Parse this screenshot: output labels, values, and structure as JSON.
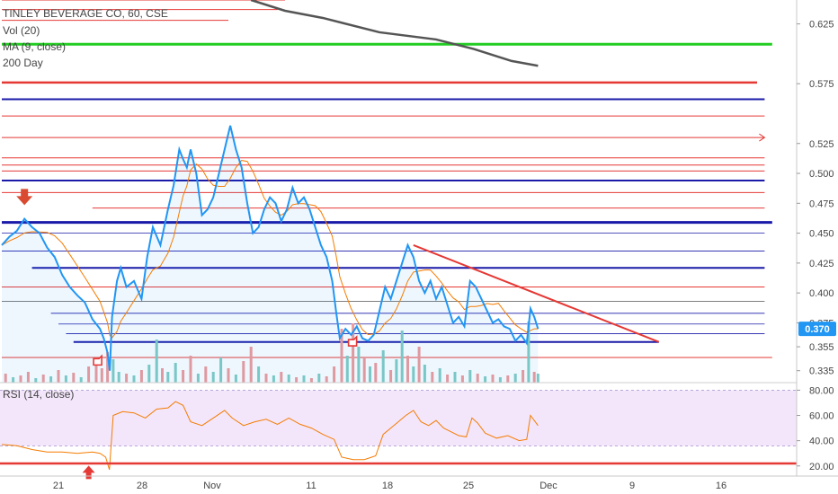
{
  "chart_data": {
    "type": "line",
    "legend": {
      "main": "TINLEY BEVERAGE CO, 60, CSE",
      "vol": "Vol (20)",
      "ma": "MA (9, close)",
      "day200": "200 Day",
      "rsi": "RSI (14, close)"
    },
    "price_axis_ticks": [
      0.625,
      0.575,
      0.525,
      0.5,
      0.475,
      0.45,
      0.425,
      0.4,
      0.375,
      0.355,
      0.335
    ],
    "price_ylim": [
      0.325,
      0.645
    ],
    "last_price": 0.37,
    "last_price_label": "0.370",
    "rsi_axis_ticks": [
      80,
      60,
      40,
      20
    ],
    "rsi_ylim": [
      12,
      86
    ],
    "rsi_band": [
      30,
      70
    ],
    "date_ticks": [
      "21",
      "28",
      "Nov",
      "11",
      "18",
      "25",
      "Dec",
      "9",
      "16"
    ],
    "colors": {
      "price": "#2196f3",
      "ma": "#f57c00",
      "rsi": "#f57c00",
      "day200": "#555555",
      "level_thin": "#e53935",
      "level_blue": "#1a1aa8",
      "green": "#22cc22",
      "vol_up": "#80cbc4",
      "vol_down": "#ef9a9a",
      "last_price_tag": "#2196f3",
      "marker": "#d94a30"
    },
    "price_series": [
      {
        "t": 0,
        "v": 0.44
      },
      {
        "t": 2,
        "v": 0.447
      },
      {
        "t": 4,
        "v": 0.452
      },
      {
        "t": 6,
        "v": 0.462
      },
      {
        "t": 8,
        "v": 0.455
      },
      {
        "t": 10,
        "v": 0.45
      },
      {
        "t": 12,
        "v": 0.438
      },
      {
        "t": 14,
        "v": 0.43
      },
      {
        "t": 16,
        "v": 0.415
      },
      {
        "t": 18,
        "v": 0.405
      },
      {
        "t": 20,
        "v": 0.398
      },
      {
        "t": 22,
        "v": 0.392
      },
      {
        "t": 24,
        "v": 0.378
      },
      {
        "t": 26,
        "v": 0.37
      },
      {
        "t": 27,
        "v": 0.362
      },
      {
        "t": 28,
        "v": 0.35
      },
      {
        "t": 28.6,
        "v": 0.335
      },
      {
        "t": 29.2,
        "v": 0.38
      },
      {
        "t": 30.5,
        "v": 0.41
      },
      {
        "t": 31.5,
        "v": 0.421
      },
      {
        "t": 33,
        "v": 0.405
      },
      {
        "t": 35,
        "v": 0.41
      },
      {
        "t": 37,
        "v": 0.395
      },
      {
        "t": 38.5,
        "v": 0.43
      },
      {
        "t": 40,
        "v": 0.455
      },
      {
        "t": 42,
        "v": 0.44
      },
      {
        "t": 44,
        "v": 0.47
      },
      {
        "t": 45.5,
        "v": 0.49
      },
      {
        "t": 47,
        "v": 0.52
      },
      {
        "t": 48,
        "v": 0.512
      },
      {
        "t": 49,
        "v": 0.505
      },
      {
        "t": 50,
        "v": 0.52
      },
      {
        "t": 51.5,
        "v": 0.5
      },
      {
        "t": 53,
        "v": 0.465
      },
      {
        "t": 54.5,
        "v": 0.47
      },
      {
        "t": 56,
        "v": 0.48
      },
      {
        "t": 57.5,
        "v": 0.5
      },
      {
        "t": 59,
        "v": 0.52
      },
      {
        "t": 60.5,
        "v": 0.54
      },
      {
        "t": 62,
        "v": 0.52
      },
      {
        "t": 63.5,
        "v": 0.505
      },
      {
        "t": 65,
        "v": 0.475
      },
      {
        "t": 66.5,
        "v": 0.45
      },
      {
        "t": 68,
        "v": 0.455
      },
      {
        "t": 69.5,
        "v": 0.47
      },
      {
        "t": 71,
        "v": 0.48
      },
      {
        "t": 72.5,
        "v": 0.475
      },
      {
        "t": 74,
        "v": 0.46
      },
      {
        "t": 75.5,
        "v": 0.47
      },
      {
        "t": 77,
        "v": 0.488
      },
      {
        "t": 78.5,
        "v": 0.475
      },
      {
        "t": 80,
        "v": 0.48
      },
      {
        "t": 81.5,
        "v": 0.47
      },
      {
        "t": 83,
        "v": 0.455
      },
      {
        "t": 84.5,
        "v": 0.44
      },
      {
        "t": 86,
        "v": 0.43
      },
      {
        "t": 87.5,
        "v": 0.41
      },
      {
        "t": 88.5,
        "v": 0.385
      },
      {
        "t": 89.5,
        "v": 0.362
      },
      {
        "t": 91,
        "v": 0.37
      },
      {
        "t": 92.5,
        "v": 0.365
      },
      {
        "t": 94,
        "v": 0.372
      },
      {
        "t": 95.5,
        "v": 0.362
      },
      {
        "t": 97,
        "v": 0.36
      },
      {
        "t": 98.5,
        "v": 0.365
      },
      {
        "t": 100,
        "v": 0.385
      },
      {
        "t": 101.5,
        "v": 0.405
      },
      {
        "t": 103,
        "v": 0.395
      },
      {
        "t": 104.5,
        "v": 0.41
      },
      {
        "t": 106,
        "v": 0.425
      },
      {
        "t": 107.5,
        "v": 0.44
      },
      {
        "t": 109,
        "v": 0.43
      },
      {
        "t": 110.5,
        "v": 0.41
      },
      {
        "t": 112,
        "v": 0.4
      },
      {
        "t": 113.5,
        "v": 0.41
      },
      {
        "t": 115,
        "v": 0.395
      },
      {
        "t": 116.5,
        "v": 0.405
      },
      {
        "t": 118,
        "v": 0.39
      },
      {
        "t": 119.5,
        "v": 0.375
      },
      {
        "t": 121,
        "v": 0.38
      },
      {
        "t": 122.5,
        "v": 0.372
      },
      {
        "t": 124,
        "v": 0.41
      },
      {
        "t": 125.5,
        "v": 0.405
      },
      {
        "t": 127,
        "v": 0.395
      },
      {
        "t": 128.5,
        "v": 0.385
      },
      {
        "t": 130,
        "v": 0.375
      },
      {
        "t": 131.5,
        "v": 0.378
      },
      {
        "t": 133,
        "v": 0.372
      },
      {
        "t": 134.5,
        "v": 0.37
      },
      {
        "t": 136,
        "v": 0.36
      },
      {
        "t": 137.5,
        "v": 0.365
      },
      {
        "t": 139,
        "v": 0.358
      },
      {
        "t": 140,
        "v": 0.387
      },
      {
        "t": 141,
        "v": 0.38
      },
      {
        "t": 142,
        "v": 0.37
      }
    ],
    "rsi_series": [
      {
        "t": 0,
        "v": 37
      },
      {
        "t": 4,
        "v": 36
      },
      {
        "t": 8,
        "v": 33
      },
      {
        "t": 12,
        "v": 31
      },
      {
        "t": 16,
        "v": 31
      },
      {
        "t": 20,
        "v": 30
      },
      {
        "t": 24,
        "v": 31
      },
      {
        "t": 26,
        "v": 30
      },
      {
        "t": 27.5,
        "v": 27
      },
      {
        "t": 28.5,
        "v": 17
      },
      {
        "t": 29.5,
        "v": 60
      },
      {
        "t": 32,
        "v": 63
      },
      {
        "t": 35,
        "v": 62
      },
      {
        "t": 38,
        "v": 58
      },
      {
        "t": 41,
        "v": 65
      },
      {
        "t": 44,
        "v": 66
      },
      {
        "t": 46,
        "v": 71
      },
      {
        "t": 48,
        "v": 68
      },
      {
        "t": 50,
        "v": 55
      },
      {
        "t": 53,
        "v": 52
      },
      {
        "t": 56,
        "v": 58
      },
      {
        "t": 59,
        "v": 64
      },
      {
        "t": 61,
        "v": 58
      },
      {
        "t": 64,
        "v": 52
      },
      {
        "t": 67,
        "v": 55
      },
      {
        "t": 70,
        "v": 57
      },
      {
        "t": 73,
        "v": 53
      },
      {
        "t": 76,
        "v": 58
      },
      {
        "t": 79,
        "v": 53
      },
      {
        "t": 82,
        "v": 50
      },
      {
        "t": 85,
        "v": 45
      },
      {
        "t": 88,
        "v": 41
      },
      {
        "t": 90,
        "v": 27
      },
      {
        "t": 93,
        "v": 25
      },
      {
        "t": 96,
        "v": 25
      },
      {
        "t": 99,
        "v": 28
      },
      {
        "t": 101,
        "v": 45
      },
      {
        "t": 103,
        "v": 50
      },
      {
        "t": 105,
        "v": 55
      },
      {
        "t": 107,
        "v": 60
      },
      {
        "t": 109,
        "v": 64
      },
      {
        "t": 111,
        "v": 55
      },
      {
        "t": 113,
        "v": 52
      },
      {
        "t": 115,
        "v": 56
      },
      {
        "t": 117,
        "v": 50
      },
      {
        "t": 119,
        "v": 47
      },
      {
        "t": 121,
        "v": 44
      },
      {
        "t": 123,
        "v": 43
      },
      {
        "t": 124.5,
        "v": 58
      },
      {
        "t": 126,
        "v": 54
      },
      {
        "t": 128,
        "v": 46
      },
      {
        "t": 131,
        "v": 42
      },
      {
        "t": 134,
        "v": 44
      },
      {
        "t": 137,
        "v": 40
      },
      {
        "t": 139,
        "v": 41
      },
      {
        "t": 140,
        "v": 60
      },
      {
        "t": 142,
        "v": 52
      }
    ],
    "day200_series": [
      {
        "t": 66,
        "v": 0.645
      },
      {
        "t": 75,
        "v": 0.636
      },
      {
        "t": 85,
        "v": 0.63
      },
      {
        "t": 100,
        "v": 0.618
      },
      {
        "t": 115,
        "v": 0.612
      },
      {
        "t": 125,
        "v": 0.604
      },
      {
        "t": 135,
        "v": 0.594
      },
      {
        "t": 142,
        "v": 0.59
      }
    ],
    "horizontal_levels": [
      {
        "v": 0.645,
        "kind": "thin",
        "t1": 0,
        "t2": 75
      },
      {
        "v": 0.637,
        "kind": "thin",
        "t1": 0,
        "t2": 73
      },
      {
        "v": 0.628,
        "kind": "thin",
        "t1": 0,
        "t2": 60
      },
      {
        "v": 0.608,
        "kind": "green",
        "t1": 0,
        "t2": 204
      },
      {
        "v": 0.576,
        "kind": "red_thick",
        "t1": 0,
        "t2": 200
      },
      {
        "v": 0.562,
        "kind": "blue",
        "t1": 0,
        "t2": 202
      },
      {
        "v": 0.548,
        "kind": "thin",
        "t1": 0,
        "t2": 202
      },
      {
        "v": 0.53,
        "kind": "thin_arrow",
        "t1": 0,
        "t2": 202
      },
      {
        "v": 0.513,
        "kind": "thin",
        "t1": 0,
        "t2": 202
      },
      {
        "v": 0.507,
        "kind": "thin",
        "t1": 0,
        "t2": 202
      },
      {
        "v": 0.502,
        "kind": "thin",
        "t1": 0,
        "t2": 202
      },
      {
        "v": 0.494,
        "kind": "blue",
        "t1": 0,
        "t2": 202
      },
      {
        "v": 0.484,
        "kind": "thin",
        "t1": 0,
        "t2": 202
      },
      {
        "v": 0.471,
        "kind": "thin",
        "t1": 24,
        "t2": 202
      },
      {
        "v": 0.459,
        "kind": "blue_thick",
        "t1": 0,
        "t2": 204
      },
      {
        "v": 0.45,
        "kind": "blue_thin",
        "t1": 0,
        "t2": 202
      },
      {
        "v": 0.435,
        "kind": "blue_thin",
        "t1": 0,
        "t2": 202
      },
      {
        "v": 0.421,
        "kind": "blue",
        "t1": 8,
        "t2": 202
      },
      {
        "v": 0.405,
        "kind": "thin",
        "t1": 0,
        "t2": 202
      },
      {
        "v": 0.393,
        "kind": "gray",
        "t1": 0,
        "t2": 202
      },
      {
        "v": 0.383,
        "kind": "blue_thin",
        "t1": 13,
        "t2": 202
      },
      {
        "v": 0.374,
        "kind": "blue_thin",
        "t1": 15,
        "t2": 202
      },
      {
        "v": 0.366,
        "kind": "blue_thin",
        "t1": 17,
        "t2": 202
      },
      {
        "v": 0.359,
        "kind": "blue",
        "t1": 19,
        "t2": 174
      },
      {
        "v": 0.346,
        "kind": "thin",
        "t1": 0,
        "t2": 204
      }
    ],
    "trendline": {
      "t1": 109,
      "v1": 0.44,
      "t2": 174,
      "v2": 0.359
    },
    "markers": [
      {
        "kind": "arrow_down",
        "t": 6,
        "v": 0.478
      },
      {
        "kind": "hand",
        "t": 25.5,
        "v": 0.342
      },
      {
        "kind": "hand",
        "t": 93,
        "v": 0.358
      },
      {
        "kind": "arrow_up_rsi",
        "t": 23,
        "v": 16
      }
    ],
    "volume_bars": [
      {
        "t": 1,
        "v": 10,
        "up": false
      },
      {
        "t": 3,
        "v": 6,
        "up": true
      },
      {
        "t": 5,
        "v": 8,
        "up": false
      },
      {
        "t": 7,
        "v": 12,
        "up": false
      },
      {
        "t": 9,
        "v": 5,
        "up": true
      },
      {
        "t": 11,
        "v": 9,
        "up": false
      },
      {
        "t": 13,
        "v": 7,
        "up": true
      },
      {
        "t": 15,
        "v": 14,
        "up": false
      },
      {
        "t": 17,
        "v": 8,
        "up": true
      },
      {
        "t": 19,
        "v": 11,
        "up": false
      },
      {
        "t": 21,
        "v": 6,
        "up": true
      },
      {
        "t": 23,
        "v": 18,
        "up": false
      },
      {
        "t": 25,
        "v": 22,
        "up": false
      },
      {
        "t": 26.5,
        "v": 16,
        "up": false
      },
      {
        "t": 28,
        "v": 34,
        "up": false
      },
      {
        "t": 29.5,
        "v": 26,
        "up": true
      },
      {
        "t": 31,
        "v": 12,
        "up": true
      },
      {
        "t": 33,
        "v": 10,
        "up": false
      },
      {
        "t": 35,
        "v": 8,
        "up": true
      },
      {
        "t": 37,
        "v": 14,
        "up": false
      },
      {
        "t": 39,
        "v": 20,
        "up": true
      },
      {
        "t": 41,
        "v": 48,
        "up": true
      },
      {
        "t": 42.5,
        "v": 16,
        "up": false
      },
      {
        "t": 44,
        "v": 12,
        "up": true
      },
      {
        "t": 46,
        "v": 22,
        "up": true
      },
      {
        "t": 48,
        "v": 14,
        "up": false
      },
      {
        "t": 50,
        "v": 30,
        "up": false
      },
      {
        "t": 52,
        "v": 10,
        "up": true
      },
      {
        "t": 54,
        "v": 18,
        "up": false
      },
      {
        "t": 56,
        "v": 12,
        "up": true
      },
      {
        "t": 58,
        "v": 28,
        "up": true
      },
      {
        "t": 60,
        "v": 16,
        "up": false
      },
      {
        "t": 62,
        "v": 9,
        "up": true
      },
      {
        "t": 64,
        "v": 24,
        "up": false
      },
      {
        "t": 66,
        "v": 40,
        "up": false
      },
      {
        "t": 68,
        "v": 18,
        "up": true
      },
      {
        "t": 70,
        "v": 10,
        "up": false
      },
      {
        "t": 72,
        "v": 8,
        "up": true
      },
      {
        "t": 74,
        "v": 12,
        "up": false
      },
      {
        "t": 76,
        "v": 9,
        "up": true
      },
      {
        "t": 78,
        "v": 6,
        "up": false
      },
      {
        "t": 80,
        "v": 8,
        "up": true
      },
      {
        "t": 82,
        "v": 5,
        "up": false
      },
      {
        "t": 84,
        "v": 10,
        "up": true
      },
      {
        "t": 86,
        "v": 7,
        "up": false
      },
      {
        "t": 88,
        "v": 18,
        "up": false
      },
      {
        "t": 90,
        "v": 60,
        "up": false
      },
      {
        "t": 91.5,
        "v": 30,
        "up": true
      },
      {
        "t": 93,
        "v": 66,
        "up": false
      },
      {
        "t": 94.5,
        "v": 40,
        "up": true
      },
      {
        "t": 96,
        "v": 28,
        "up": false
      },
      {
        "t": 97.5,
        "v": 18,
        "up": true
      },
      {
        "t": 99,
        "v": 22,
        "up": false
      },
      {
        "t": 101,
        "v": 36,
        "up": true
      },
      {
        "t": 103,
        "v": 14,
        "up": false
      },
      {
        "t": 104.5,
        "v": 26,
        "up": true
      },
      {
        "t": 106,
        "v": 58,
        "up": true
      },
      {
        "t": 107.5,
        "v": 30,
        "up": false
      },
      {
        "t": 109,
        "v": 18,
        "up": true
      },
      {
        "t": 110.5,
        "v": 40,
        "up": false
      },
      {
        "t": 112,
        "v": 20,
        "up": true
      },
      {
        "t": 114,
        "v": 12,
        "up": false
      },
      {
        "t": 116,
        "v": 16,
        "up": true
      },
      {
        "t": 118,
        "v": 9,
        "up": false
      },
      {
        "t": 120,
        "v": 12,
        "up": true
      },
      {
        "t": 122,
        "v": 8,
        "up": false
      },
      {
        "t": 124,
        "v": 14,
        "up": true
      },
      {
        "t": 126,
        "v": 10,
        "up": false
      },
      {
        "t": 128,
        "v": 7,
        "up": true
      },
      {
        "t": 130,
        "v": 9,
        "up": false
      },
      {
        "t": 132,
        "v": 6,
        "up": true
      },
      {
        "t": 134,
        "v": 8,
        "up": false
      },
      {
        "t": 136,
        "v": 10,
        "up": true
      },
      {
        "t": 138,
        "v": 14,
        "up": false
      },
      {
        "t": 139.5,
        "v": 68,
        "up": true
      },
      {
        "t": 141,
        "v": 12,
        "up": false
      },
      {
        "t": 142,
        "v": 10,
        "up": true
      }
    ]
  }
}
